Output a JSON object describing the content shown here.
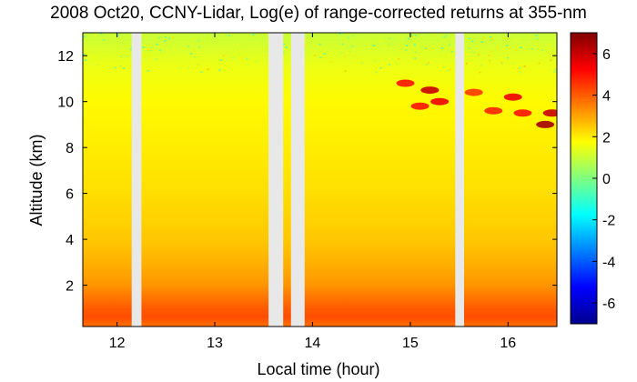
{
  "chart_data": {
    "type": "heatmap",
    "title": "2008 Oct20, CCNY-Lidar, Log(e) of range-corrected returns at 355-nm",
    "xlabel": "Local time (hour)",
    "ylabel": "Altitude (km)",
    "xlim": [
      11.65,
      16.5
    ],
    "ylim": [
      0.2,
      13.0
    ],
    "x_ticks": [
      12,
      13,
      14,
      15,
      16
    ],
    "y_ticks": [
      2,
      4,
      6,
      8,
      10,
      12
    ],
    "colorbar": {
      "range": [
        -7,
        7
      ],
      "ticks": [
        -6,
        -4,
        -2,
        0,
        2,
        4,
        6
      ],
      "colormap": "jet",
      "colors": [
        "#00008f",
        "#0000ff",
        "#00ffff",
        "#ffff00",
        "#ff0000",
        "#800000"
      ]
    },
    "data_gaps_hours": [
      [
        12.15,
        12.25
      ],
      [
        13.55,
        13.7
      ],
      [
        13.78,
        13.92
      ],
      [
        15.46,
        15.55
      ]
    ],
    "gap_color": "#e8e8e8",
    "value_profile": [
      {
        "altitude_km": 0.3,
        "value": 3.8
      },
      {
        "altitude_km": 0.6,
        "value": 4.2
      },
      {
        "altitude_km": 1.0,
        "value": 4.0
      },
      {
        "altitude_km": 1.5,
        "value": 3.6
      },
      {
        "altitude_km": 2.0,
        "value": 3.2
      },
      {
        "altitude_km": 3.0,
        "value": 2.8
      },
      {
        "altitude_km": 4.0,
        "value": 2.5
      },
      {
        "altitude_km": 6.0,
        "value": 2.2
      },
      {
        "altitude_km": 8.0,
        "value": 2.0
      },
      {
        "altitude_km": 10.0,
        "value": 1.8
      },
      {
        "altitude_km": 11.5,
        "value": 1.5
      },
      {
        "altitude_km": 13.0,
        "value": 1.0
      }
    ],
    "cloud_features": [
      {
        "time_hour": 14.95,
        "altitude_km": 10.8,
        "value": 5.0
      },
      {
        "time_hour": 15.2,
        "altitude_km": 10.5,
        "value": 6.0
      },
      {
        "time_hour": 15.3,
        "altitude_km": 10.0,
        "value": 5.5
      },
      {
        "time_hour": 15.1,
        "altitude_km": 9.8,
        "value": 5.0
      },
      {
        "time_hour": 15.65,
        "altitude_km": 10.4,
        "value": 4.5
      },
      {
        "time_hour": 15.85,
        "altitude_km": 9.6,
        "value": 4.8
      },
      {
        "time_hour": 16.05,
        "altitude_km": 10.2,
        "value": 5.5
      },
      {
        "time_hour": 16.15,
        "altitude_km": 9.5,
        "value": 5.0
      },
      {
        "time_hour": 16.38,
        "altitude_km": 9.0,
        "value": 6.5
      },
      {
        "time_hour": 16.45,
        "altitude_km": 9.5,
        "value": 6.0
      }
    ]
  }
}
